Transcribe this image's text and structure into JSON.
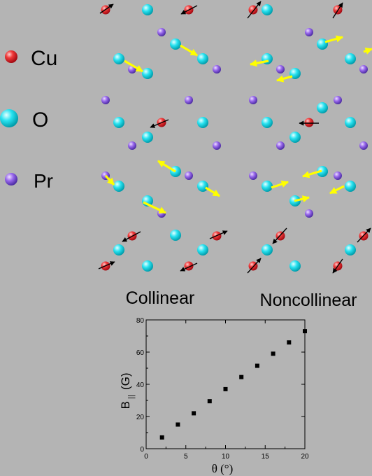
{
  "legend": {
    "items": [
      {
        "label": "Cu",
        "color": "#e8101e",
        "icon": "copper-atom-icon"
      },
      {
        "label": "O",
        "color": "#00d8e8",
        "icon": "oxygen-atom-icon"
      },
      {
        "label": "Pr",
        "color": "#8a5ae0",
        "icon": "praseodymium-atom-icon"
      }
    ]
  },
  "panels": {
    "left_label": "Collinear",
    "right_label": "Noncollinear"
  },
  "colors": {
    "background": "#b4b4b4",
    "cu_moment_arrow": "#000000",
    "pr_moment_arrow": "#ffff00"
  },
  "chart_data": {
    "type": "scatter",
    "title": "",
    "xlabel": "θ (°)",
    "ylabel_main": "B",
    "ylabel_sub": "||",
    "ylabel_unit": "(G)",
    "xlim": [
      0,
      20
    ],
    "ylim": [
      0,
      80
    ],
    "xticks": [
      0,
      5,
      10,
      15,
      20
    ],
    "yticks": [
      0,
      20,
      40,
      60,
      80
    ],
    "grid": false,
    "x": [
      2,
      4,
      6,
      8,
      10,
      12,
      14,
      16,
      18,
      20
    ],
    "y": [
      7,
      15,
      22,
      29.5,
      37,
      44.5,
      51.5,
      59,
      66,
      73
    ]
  }
}
